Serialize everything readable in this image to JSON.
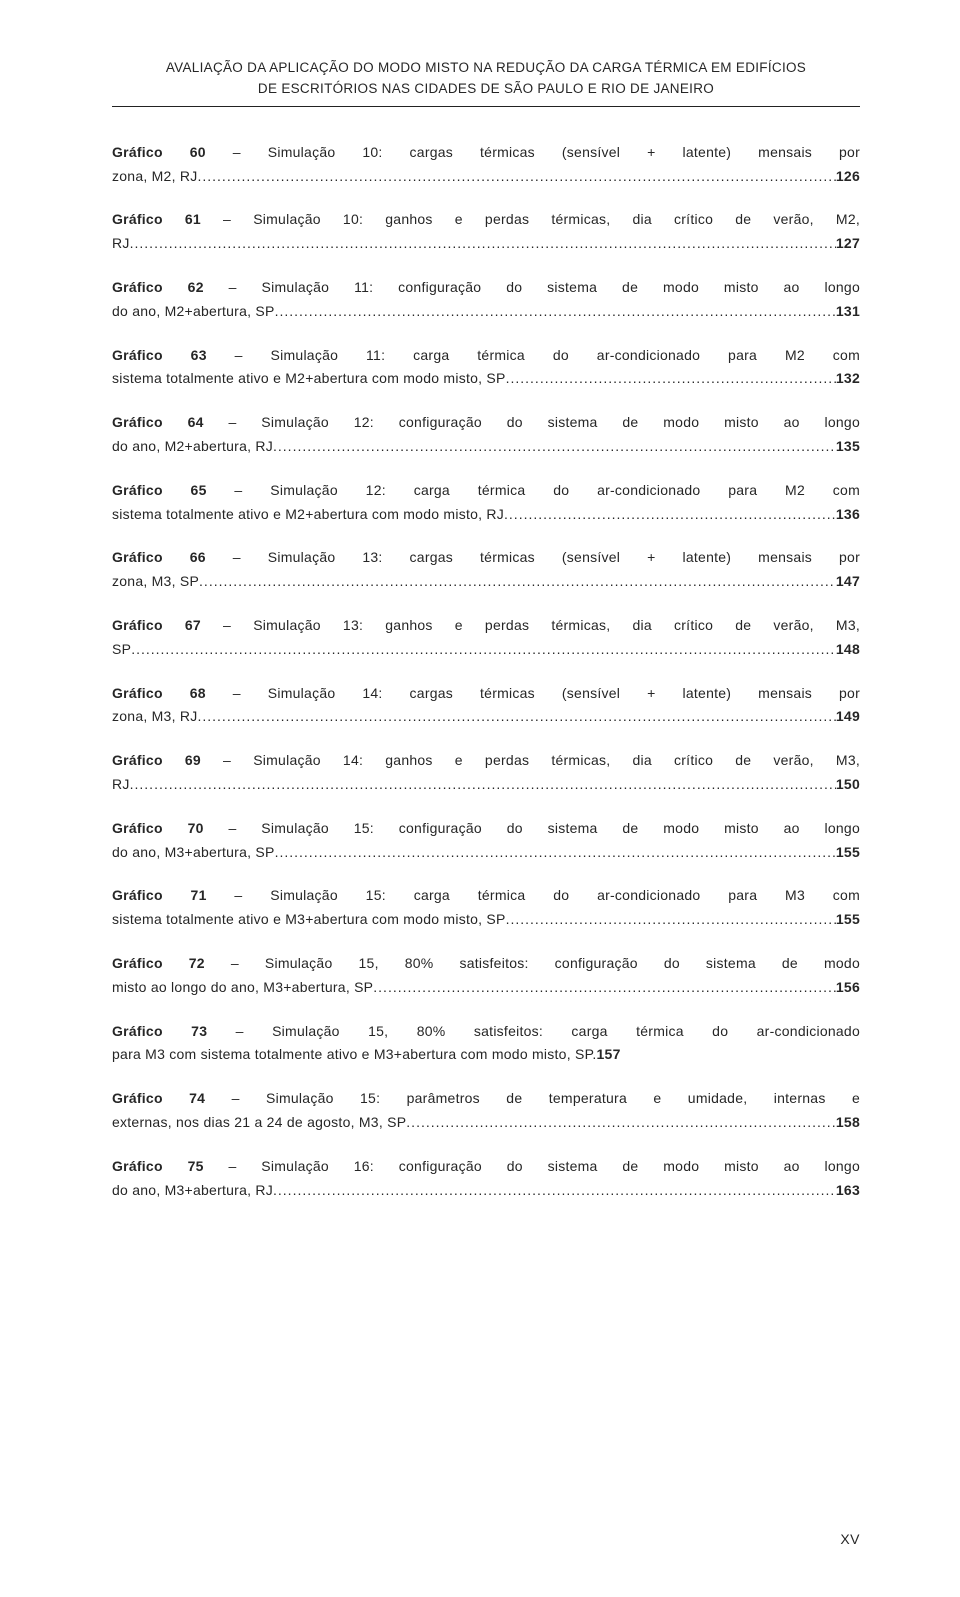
{
  "header": {
    "line1": "AVALIAÇÃO DA APLICAÇÃO DO MODO MISTO NA REDUÇÃO DA CARGA TÉRMICA EM EDIFÍCIOS",
    "line2": "DE ESCRITÓRIOS NAS CIDADES DE SÃO PAULO E RIO DE JANEIRO"
  },
  "entries": [
    {
      "lead": "Gráfico 60",
      "top": " – Simulação 10: cargas térmicas (sensível + latente) mensais por",
      "tail": "zona, M2, RJ",
      "page": "126"
    },
    {
      "lead": "Gráfico 61",
      "top": " – Simulação 10: ganhos e perdas térmicas, dia crítico de verão, M2,",
      "tail": "RJ",
      "page": "127"
    },
    {
      "lead": "Gráfico 62",
      "top": " – Simulação 11: configuração do sistema de modo misto ao longo",
      "tail": "do ano, M2+abertura, SP",
      "page": "131"
    },
    {
      "lead": "Gráfico 63",
      "top": " – Simulação 11: carga térmica do ar-condicionado para M2 com",
      "tail": "sistema totalmente ativo e M2+abertura com modo misto, SP",
      "page": "132"
    },
    {
      "lead": "Gráfico 64",
      "top": " – Simulação 12: configuração do sistema de modo misto ao longo",
      "tail": "do ano, M2+abertura, RJ",
      "page": "135"
    },
    {
      "lead": "Gráfico 65",
      "top": " – Simulação 12: carga térmica do ar-condicionado para M2 com",
      "tail": "sistema totalmente ativo e M2+abertura com modo misto, RJ",
      "page": "136"
    },
    {
      "lead": "Gráfico 66",
      "top": " – Simulação 13: cargas térmicas (sensível + latente) mensais por",
      "tail": "zona, M3, SP",
      "page": "147"
    },
    {
      "lead": "Gráfico 67",
      "top": " – Simulação 13: ganhos e perdas térmicas, dia crítico de verão, M3,",
      "tail": "SP",
      "page": "148"
    },
    {
      "lead": "Gráfico 68",
      "top": " – Simulação 14: cargas térmicas (sensível + latente) mensais por",
      "tail": "zona, M3, RJ",
      "page": "149"
    },
    {
      "lead": "Gráfico 69",
      "top": " – Simulação 14: ganhos e perdas térmicas, dia crítico de verão, M3,",
      "tail": "RJ",
      "page": "150"
    },
    {
      "lead": "Gráfico 70",
      "top": " – Simulação 15: configuração do sistema de modo misto ao longo",
      "tail": "do ano, M3+abertura, SP",
      "page": "155"
    },
    {
      "lead": "Gráfico 71",
      "top": " – Simulação 15: carga térmica do ar-condicionado para M3 com",
      "tail": "sistema totalmente ativo e M3+abertura com modo misto, SP",
      "page": "155"
    },
    {
      "lead": "Gráfico 72",
      "top": " – Simulação 15, 80% satisfeitos: configuração do sistema de modo",
      "tail": "misto ao longo do ano, M3+abertura, SP",
      "page": "156"
    },
    {
      "lead": "Gráfico 73",
      "top": " – Simulação 15, 80% satisfeitos: carga térmica do ar-condicionado",
      "tail": "para M3 com sistema totalmente ativo e M3+abertura com modo misto, SP.",
      "page": "157",
      "nodots": true
    },
    {
      "lead": "Gráfico 74",
      "top": " – Simulação 15: parâmetros de temperatura e umidade, internas e",
      "tail": "externas, nos dias 21 a 24 de agosto, M3, SP",
      "page": "158"
    },
    {
      "lead": "Gráfico 75",
      "top": " – Simulação 16: configuração do sistema de modo misto ao longo",
      "tail": "do ano, M3+abertura, RJ",
      "page": "163"
    }
  ],
  "footer": {
    "pageNumeral": "XV"
  },
  "style": {
    "textColor": "#262626",
    "background": "#ffffff",
    "fontSizeBody": 14,
    "fontSizeHeader": 13.5,
    "ruleColor": "#222222"
  }
}
